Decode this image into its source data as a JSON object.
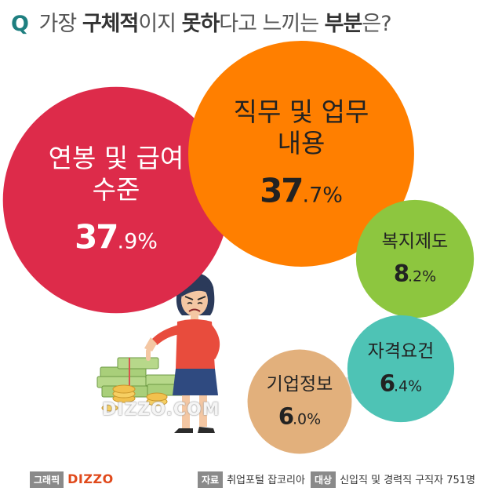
{
  "header": {
    "q_mark": "Q",
    "parts": [
      {
        "text": "가장 ",
        "bold": false
      },
      {
        "text": "구체적",
        "bold": true
      },
      {
        "text": "이지 ",
        "bold": false
      },
      {
        "text": "못하",
        "bold": true
      },
      {
        "text": "다고 느끼는 ",
        "bold": false
      },
      {
        "text": "부분",
        "bold": true
      },
      {
        "text": "은?",
        "bold": false
      }
    ]
  },
  "chart_data": {
    "type": "bubble",
    "title": "Q 가장 구체적이지 못하다고 느끼는 부분은?",
    "categories": [
      "연봉 및 급여 수준",
      "직무 및 업무 내용",
      "복지제도",
      "자격요건",
      "기업정보"
    ],
    "values": [
      37.9,
      37.7,
      8.2,
      6.4,
      6.0
    ],
    "unit": "%",
    "items": [
      {
        "label_lines": [
          "연봉 및 급여",
          "수준"
        ],
        "value": 37.9,
        "int": "37",
        "dec": ".9%",
        "color": "#dd2b4a",
        "text_color": "#ffffff"
      },
      {
        "label_lines": [
          "직무 및 업무",
          "내용"
        ],
        "value": 37.7,
        "int": "37",
        "dec": ".7%",
        "color": "#ff7f00",
        "text_color": "#222222"
      },
      {
        "label_lines": [
          "복지제도"
        ],
        "value": 8.2,
        "int": "8",
        "dec": ".2%",
        "color": "#8dc63f",
        "text_color": "#222222"
      },
      {
        "label_lines": [
          "자격요건"
        ],
        "value": 6.4,
        "int": "6",
        "dec": ".4%",
        "color": "#4ec3b5",
        "text_color": "#222222"
      },
      {
        "label_lines": [
          "기업정보"
        ],
        "value": 6.0,
        "int": "6",
        "dec": ".0%",
        "color": "#e2b07c",
        "text_color": "#222222"
      }
    ],
    "connector_color": "#dcdcdc"
  },
  "footer": {
    "credit_tag": "그래픽",
    "brand": "DIZZO",
    "source_tag": "자료",
    "source": "취업포털 잡코리아",
    "target_tag": "대상",
    "target": "신입직 및 경력직 구직자 751명"
  },
  "watermark": "DIZZO.COM",
  "illustration": {
    "name": "woman-thumbs-down-with-money-illustration"
  }
}
